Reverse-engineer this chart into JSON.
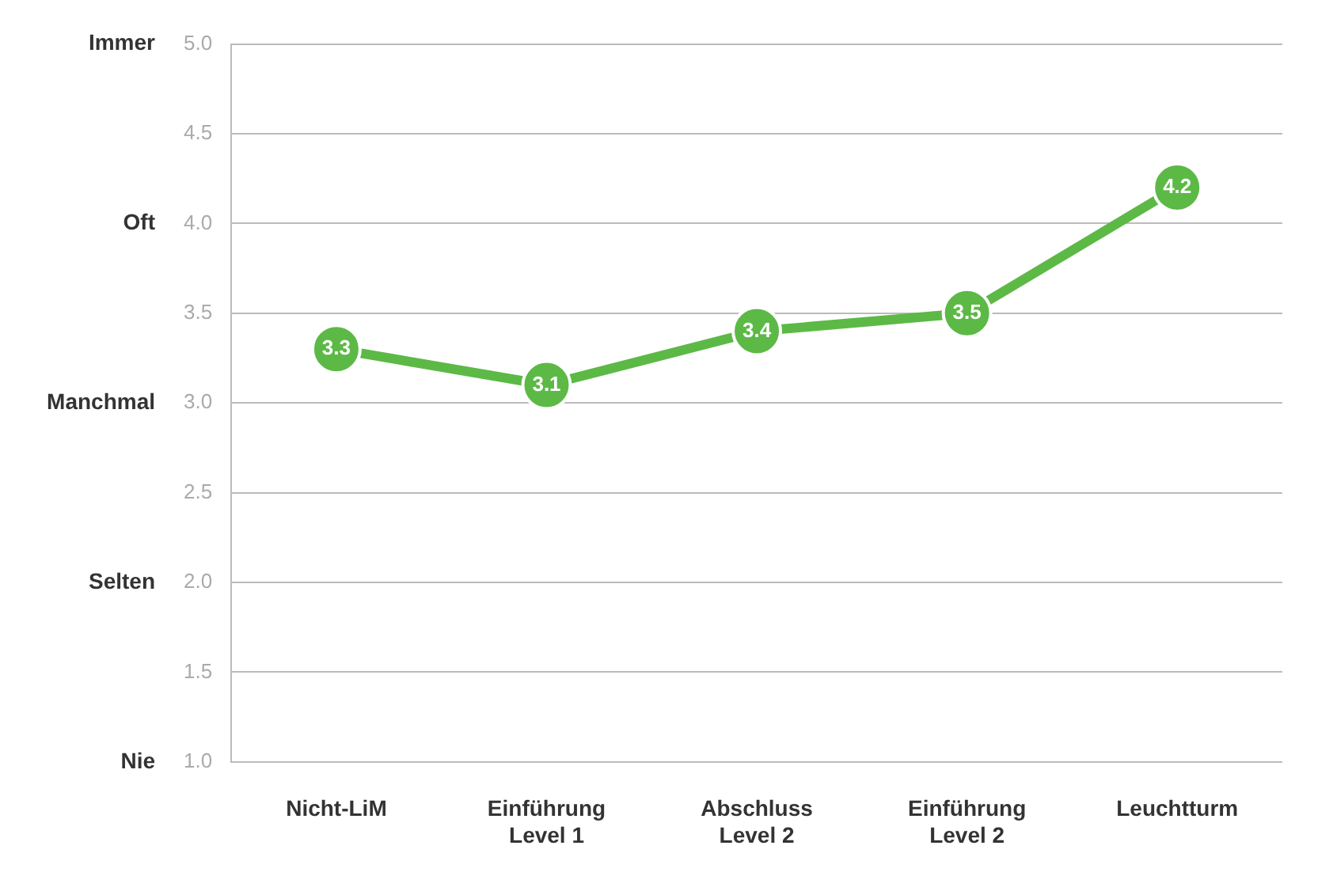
{
  "chart_data": {
    "type": "line",
    "categories": [
      "Nicht-LiM",
      "Einführung\nLevel 1",
      "Abschluss\nLevel 2",
      "Einführung\nLevel 2",
      "Leuchtturm"
    ],
    "series": [
      {
        "color": "#5cb946",
        "values": [
          3.3,
          3.1,
          3.4,
          3.5,
          4.2
        ]
      }
    ],
    "ylim": [
      1,
      5
    ],
    "yticks": [
      {
        "value": 1,
        "label": "1.0"
      },
      {
        "value": 1.5,
        "label": "1.5"
      },
      {
        "value": 2,
        "label": "2.0"
      },
      {
        "value": 2.5,
        "label": "2.5"
      },
      {
        "value": 3,
        "label": "3.0"
      },
      {
        "value": 3.5,
        "label": "3.5"
      },
      {
        "value": 4,
        "label": "4.0"
      },
      {
        "value": 4.5,
        "label": "4.5"
      },
      {
        "value": 5,
        "label": "5.0"
      }
    ],
    "annotations": [
      "Immer",
      "Oft",
      "Manchmal",
      "Selten",
      "Nie"
    ],
    "grid": "y",
    "legend": false,
    "marker": "circle",
    "line_style": "solid",
    "data_labels": true
  }
}
